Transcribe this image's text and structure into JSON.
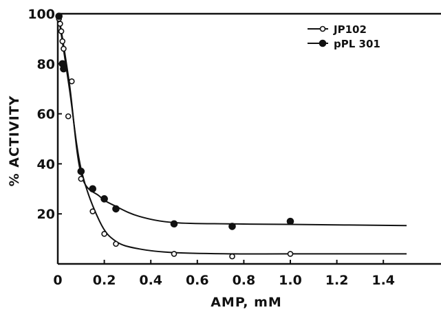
{
  "chart_data": {
    "type": "scatter",
    "title": "",
    "xlabel": "AMP, mM",
    "ylabel": "% ACTIVITY",
    "xlim": [
      0,
      1.5
    ],
    "ylim": [
      0,
      100
    ],
    "xticks": [
      0,
      0.2,
      0.4,
      0.6,
      0.8,
      1.0,
      1.2,
      1.4
    ],
    "xtick_labels": [
      "0",
      "0.2",
      "0.4",
      "0.6",
      "0.8",
      "1.0",
      "1.2",
      "1.4"
    ],
    "yticks": [
      20,
      40,
      60,
      80,
      100
    ],
    "ytick_labels": [
      "20",
      "40",
      "60",
      "80",
      "100"
    ],
    "grid": false,
    "legend_position": "top-right",
    "fitted_curves": true,
    "series": [
      {
        "name": "JP102",
        "marker": "open-circle",
        "color": "#111111",
        "x": [
          0.005,
          0.01,
          0.015,
          0.02,
          0.025,
          0.03,
          0.045,
          0.06,
          0.1,
          0.15,
          0.2,
          0.25,
          0.5,
          0.75,
          1.0
        ],
        "y": [
          98,
          96,
          93,
          89,
          86,
          78,
          59,
          73,
          34,
          21,
          12,
          8,
          4,
          3,
          4
        ]
      },
      {
        "name": "pPL 301",
        "marker": "filled-circle",
        "color": "#111111",
        "x": [
          0.005,
          0.02,
          0.025,
          0.1,
          0.15,
          0.2,
          0.25,
          0.5,
          0.75,
          1.0
        ],
        "y": [
          99,
          80,
          78,
          37,
          30,
          26,
          22,
          16,
          15,
          17
        ]
      }
    ]
  }
}
